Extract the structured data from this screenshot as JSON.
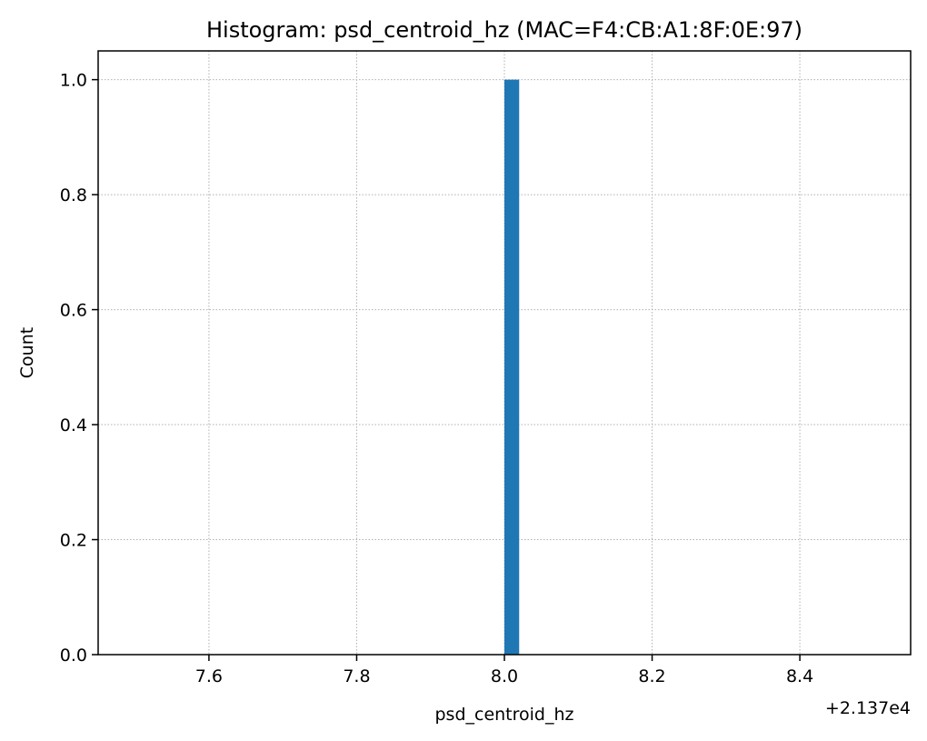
{
  "chart_data": {
    "type": "bar",
    "title": "Histogram: psd_centroid_hz (MAC=F4:CB:A1:8F:0E:97)",
    "xlabel": "psd_centroid_hz",
    "ylabel": "Count",
    "x_offset_label": "+2.137e4",
    "xlim": [
      7.45,
      8.55
    ],
    "ylim": [
      0,
      1.05
    ],
    "x_ticks": [
      7.6,
      7.8,
      8.0,
      8.2,
      8.4
    ],
    "x_tick_labels": [
      "7.6",
      "7.8",
      "8.0",
      "8.2",
      "8.4"
    ],
    "y_ticks": [
      0.0,
      0.2,
      0.4,
      0.6,
      0.8,
      1.0
    ],
    "y_tick_labels": [
      "0.0",
      "0.2",
      "0.4",
      "0.6",
      "0.8",
      "1.0"
    ],
    "grid": true,
    "bars": [
      {
        "x_start": 8.0,
        "x_end": 8.02,
        "count": 1
      }
    ],
    "bar_color": "#1f77b4"
  }
}
